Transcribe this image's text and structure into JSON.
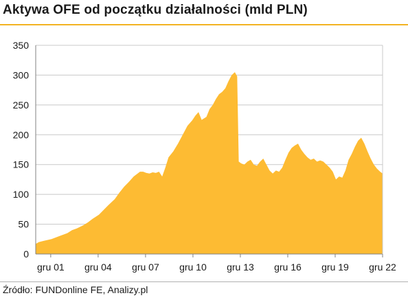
{
  "title": "Aktywa OFE od początku działalności (mld PLN)",
  "source": "Źródło: FUNDonline FE, Analizy.pl",
  "colors": {
    "fill": "#fdbb33",
    "accent_rule": "#f2b321",
    "grid": "#c8c8c8"
  },
  "chart_data": {
    "type": "area",
    "title": "Aktywa OFE od początku działalności (mld PLN)",
    "xlabel": "",
    "ylabel": "",
    "ylim": [
      0,
      350
    ],
    "xlim": [
      2001.0,
      2022.95
    ],
    "yticks": [
      0,
      50,
      100,
      150,
      200,
      250,
      300,
      350
    ],
    "xtick_labels": [
      "gru 01",
      "gru 04",
      "gru 07",
      "gru 10",
      "gru 13",
      "gru 16",
      "gru 19",
      "gru 22"
    ],
    "xtick_positions": [
      2001.95,
      2004.95,
      2007.95,
      2010.95,
      2013.95,
      2016.95,
      2019.95,
      2022.95
    ],
    "grid": true,
    "legend": "none",
    "x": [
      2001.0,
      2001.2,
      2001.5,
      2002.0,
      2002.5,
      2003.0,
      2003.3,
      2003.6,
      2004.0,
      2004.3,
      2004.6,
      2005.0,
      2005.3,
      2005.6,
      2006.0,
      2006.3,
      2006.6,
      2006.9,
      2007.2,
      2007.4,
      2007.6,
      2007.8,
      2008.0,
      2008.2,
      2008.4,
      2008.6,
      2008.8,
      2009.0,
      2009.2,
      2009.4,
      2009.7,
      2010.0,
      2010.3,
      2010.6,
      2010.9,
      2011.1,
      2011.3,
      2011.5,
      2011.8,
      2012.0,
      2012.2,
      2012.4,
      2012.6,
      2012.8,
      2013.0,
      2013.2,
      2013.4,
      2013.6,
      2013.75,
      2013.85,
      2014.0,
      2014.2,
      2014.4,
      2014.6,
      2014.8,
      2015.0,
      2015.2,
      2015.4,
      2015.6,
      2015.8,
      2016.0,
      2016.2,
      2016.4,
      2016.6,
      2016.8,
      2017.0,
      2017.2,
      2017.4,
      2017.6,
      2017.8,
      2018.0,
      2018.2,
      2018.4,
      2018.6,
      2018.8,
      2019.0,
      2019.2,
      2019.4,
      2019.6,
      2019.8,
      2020.0,
      2020.2,
      2020.4,
      2020.6,
      2020.8,
      2021.0,
      2021.2,
      2021.4,
      2021.6,
      2021.8,
      2022.0,
      2022.2,
      2022.4,
      2022.6,
      2022.8,
      2022.95
    ],
    "values": [
      17,
      20,
      22,
      25,
      30,
      35,
      40,
      43,
      48,
      53,
      59,
      66,
      74,
      82,
      92,
      103,
      113,
      121,
      130,
      134,
      138,
      138,
      136,
      135,
      137,
      136,
      138,
      130,
      145,
      162,
      172,
      185,
      200,
      215,
      224,
      232,
      238,
      225,
      230,
      243,
      250,
      260,
      268,
      272,
      278,
      290,
      300,
      305,
      298,
      155,
      152,
      150,
      155,
      158,
      150,
      148,
      155,
      160,
      150,
      140,
      135,
      140,
      138,
      145,
      158,
      170,
      178,
      182,
      185,
      175,
      168,
      162,
      158,
      160,
      155,
      157,
      155,
      150,
      145,
      138,
      125,
      130,
      128,
      140,
      158,
      168,
      180,
      190,
      195,
      185,
      172,
      160,
      150,
      143,
      138,
      135
    ]
  }
}
